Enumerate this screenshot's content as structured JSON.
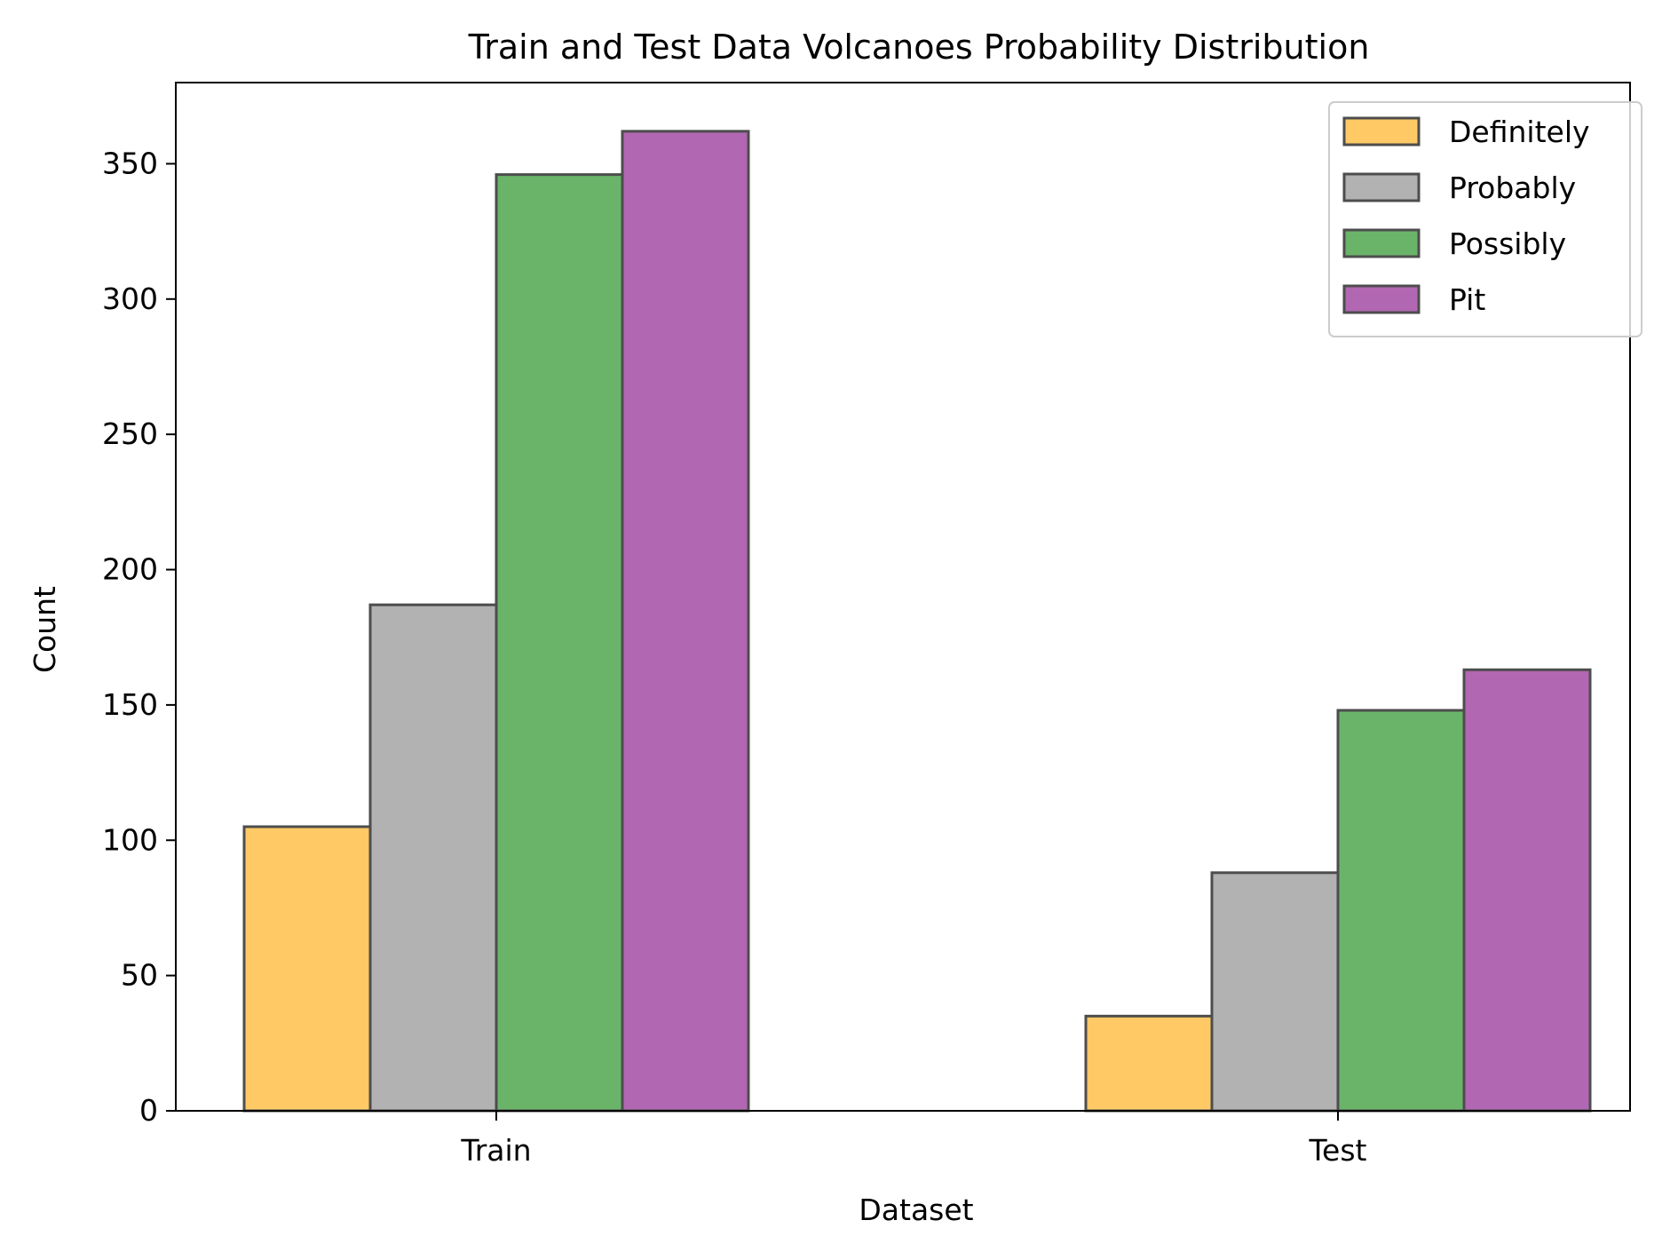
{
  "chart_data": {
    "type": "bar",
    "title": "Train and Test Data Volcanoes Probability Distribution",
    "xlabel": "Dataset",
    "ylabel": "Count",
    "categories": [
      "Train",
      "Test"
    ],
    "series": [
      {
        "name": "Definitely",
        "values": [
          105,
          35
        ],
        "color": "#FFC966"
      },
      {
        "name": "Probably",
        "values": [
          187,
          88
        ],
        "color": "#B2B2B2"
      },
      {
        "name": "Possibly",
        "values": [
          346,
          148
        ],
        "color": "#6AB46A"
      },
      {
        "name": "Pit",
        "values": [
          362,
          163
        ],
        "color": "#B267B2"
      }
    ],
    "ylim": [
      0,
      380
    ],
    "yticks": [
      0,
      50,
      100,
      150,
      200,
      250,
      300,
      350
    ],
    "grid": false,
    "legend_position": "top-right",
    "bar_edge_color": "#4D4D4D"
  }
}
